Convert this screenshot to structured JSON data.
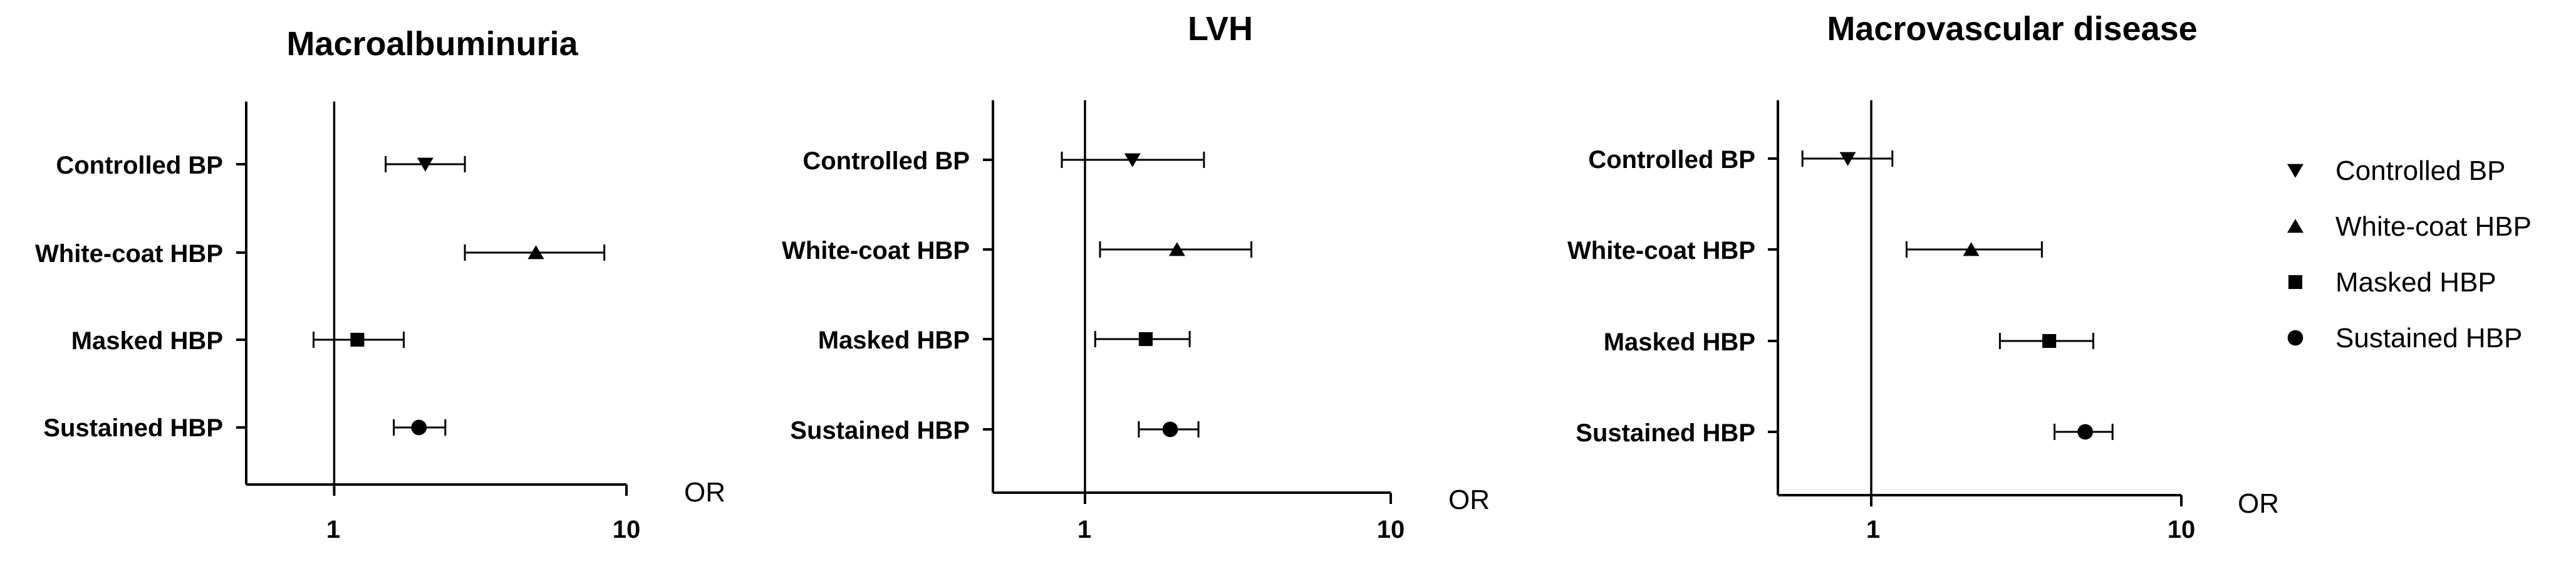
{
  "chart_data": [
    {
      "type": "forest",
      "title": "Macroalbuminuria",
      "xlabel": "OR",
      "x_scale": "log",
      "xlim": [
        0.5,
        10
      ],
      "xticks": [
        "1",
        "10"
      ],
      "reference_line": 1,
      "categories": [
        "Controlled BP",
        "White-coat HBP",
        "Masked HBP",
        "Sustained HBP"
      ],
      "estimates": [
        {
          "category": "Controlled BP",
          "or": 2.05,
          "lower": 1.5,
          "upper": 2.8
        },
        {
          "category": "White-coat HBP",
          "or": 4.9,
          "lower": 2.8,
          "upper": 8.4
        },
        {
          "category": "Masked HBP",
          "or": 1.2,
          "lower": 0.85,
          "upper": 1.73
        },
        {
          "category": "Sustained HBP",
          "or": 1.95,
          "lower": 1.6,
          "upper": 2.4
        }
      ]
    },
    {
      "type": "forest",
      "title": "LVH",
      "xlabel": "OR",
      "x_scale": "log",
      "xlim": [
        0.5,
        10
      ],
      "xticks": [
        "1",
        "10"
      ],
      "reference_line": 1,
      "categories": [
        "Controlled BP",
        "White-coat HBP",
        "Masked HBP",
        "Sustained HBP"
      ],
      "estimates": [
        {
          "category": "Controlled BP",
          "or": 1.43,
          "lower": 0.84,
          "upper": 2.45
        },
        {
          "category": "White-coat HBP",
          "or": 2.0,
          "lower": 1.12,
          "upper": 3.5
        },
        {
          "category": "Masked HBP",
          "or": 1.58,
          "lower": 1.08,
          "upper": 2.2
        },
        {
          "category": "Sustained HBP",
          "or": 1.9,
          "lower": 1.5,
          "upper": 2.35
        }
      ]
    },
    {
      "type": "forest",
      "title": "Macrovascular disease",
      "xlabel": "OR",
      "x_scale": "log",
      "xlim": [
        0.5,
        10
      ],
      "xticks": [
        "1",
        "10"
      ],
      "reference_line": 1,
      "categories": [
        "Controlled BP",
        "White-coat HBP",
        "Masked HBP",
        "Sustained HBP"
      ],
      "estimates": [
        {
          "category": "Controlled BP",
          "or": 0.84,
          "lower": 0.6,
          "upper": 1.17
        },
        {
          "category": "White-coat HBP",
          "or": 2.1,
          "lower": 1.3,
          "upper": 3.55
        },
        {
          "category": "Masked HBP",
          "or": 3.75,
          "lower": 2.6,
          "upper": 5.2
        },
        {
          "category": "Sustained HBP",
          "or": 4.9,
          "lower": 3.9,
          "upper": 6.0
        }
      ]
    }
  ],
  "legend": {
    "placement": "right",
    "items": [
      {
        "label": "Controlled BP",
        "marker": "triangle-down"
      },
      {
        "label": "White-coat HBP",
        "marker": "triangle-up"
      },
      {
        "label": "Masked HBP",
        "marker": "square"
      },
      {
        "label": "Sustained HBP",
        "marker": "circle"
      }
    ]
  },
  "colors": {
    "ink": "#000000",
    "background": "#ffffff"
  }
}
